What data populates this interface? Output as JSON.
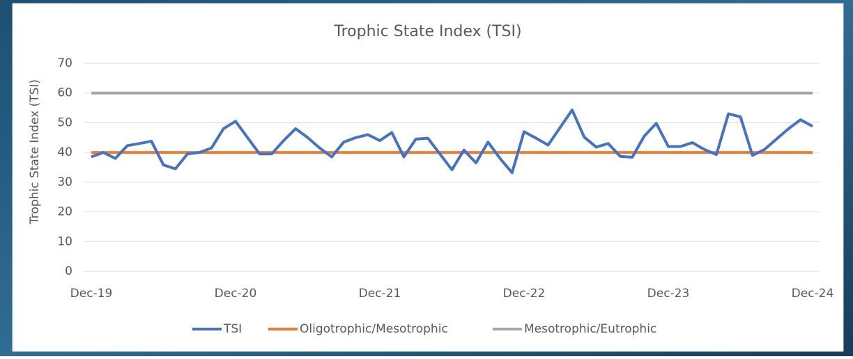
{
  "chart_data": {
    "type": "line",
    "title": "Trophic State Index (TSI)",
    "y_label": "Trophic State Index (TSI)",
    "x": [
      "2019-12",
      "2020-01",
      "2020-02",
      "2020-03",
      "2020-04",
      "2020-05",
      "2020-06",
      "2020-07",
      "2020-08",
      "2020-09",
      "2020-10",
      "2020-11",
      "2020-12",
      "2021-01",
      "2021-02",
      "2021-03",
      "2021-04",
      "2021-05",
      "2021-06",
      "2021-07",
      "2021-08",
      "2021-09",
      "2021-10",
      "2021-11",
      "2021-12",
      "2022-01",
      "2022-02",
      "2022-03",
      "2022-04",
      "2022-05",
      "2022-06",
      "2022-07",
      "2022-08",
      "2022-09",
      "2022-10",
      "2022-11",
      "2022-12",
      "2023-01",
      "2023-02",
      "2023-03",
      "2023-04",
      "2023-05",
      "2023-06",
      "2023-07",
      "2023-08",
      "2023-09",
      "2023-10",
      "2023-11",
      "2023-12",
      "2024-01",
      "2024-02",
      "2024-03",
      "2024-04",
      "2024-05",
      "2024-06",
      "2024-07",
      "2024-08",
      "2024-09",
      "2024-10",
      "2024-11",
      "2024-12"
    ],
    "series": [
      {
        "name": "TSI",
        "color": "#4472c4",
        "values": [
          38.5,
          40,
          38,
          42.3,
          43,
          43.8,
          35.8,
          34.5,
          39.5,
          40,
          41.5,
          48,
          50.5,
          45,
          39.5,
          39.5,
          44,
          48,
          45,
          41.5,
          38.5,
          43.5,
          45,
          46,
          44,
          46.7,
          38.5,
          44.5,
          44.8,
          39.5,
          34.2,
          40.8,
          36.5,
          43.5,
          38,
          33.2,
          47,
          44.8,
          42.5,
          48.4,
          54.3,
          45.2,
          41.8,
          43,
          38.7,
          38.4,
          45.5,
          49.8,
          42,
          42,
          43.3,
          41,
          39.3,
          53,
          52,
          39,
          41,
          44.5,
          48,
          51,
          48.8
        ]
      },
      {
        "name": "Oligotrophic/Mesotrophic",
        "color": "#ed7d31",
        "x": [
          "2019-12",
          "2024-12"
        ],
        "values": [
          40,
          40
        ]
      },
      {
        "name": "Mesotrophic/Eutrophic",
        "color": "#a5a5a5",
        "x": [
          "2019-12",
          "2024-12"
        ],
        "values": [
          60,
          60
        ]
      }
    ],
    "xlim": [
      "2019-12",
      "2024-12"
    ],
    "xticks": [
      {
        "value": "2019-12",
        "label": "Dec-19"
      },
      {
        "value": "2020-12",
        "label": "Dec-20"
      },
      {
        "value": "2021-12",
        "label": "Dec-21"
      },
      {
        "value": "2022-12",
        "label": "Dec-22"
      },
      {
        "value": "2023-12",
        "label": "Dec-23"
      },
      {
        "value": "2024-12",
        "label": "Dec-24"
      }
    ],
    "ylim": [
      0,
      70
    ],
    "yticks": [
      0,
      10,
      20,
      30,
      40,
      50,
      60,
      70
    ],
    "grid": true,
    "legend": "bottom"
  }
}
